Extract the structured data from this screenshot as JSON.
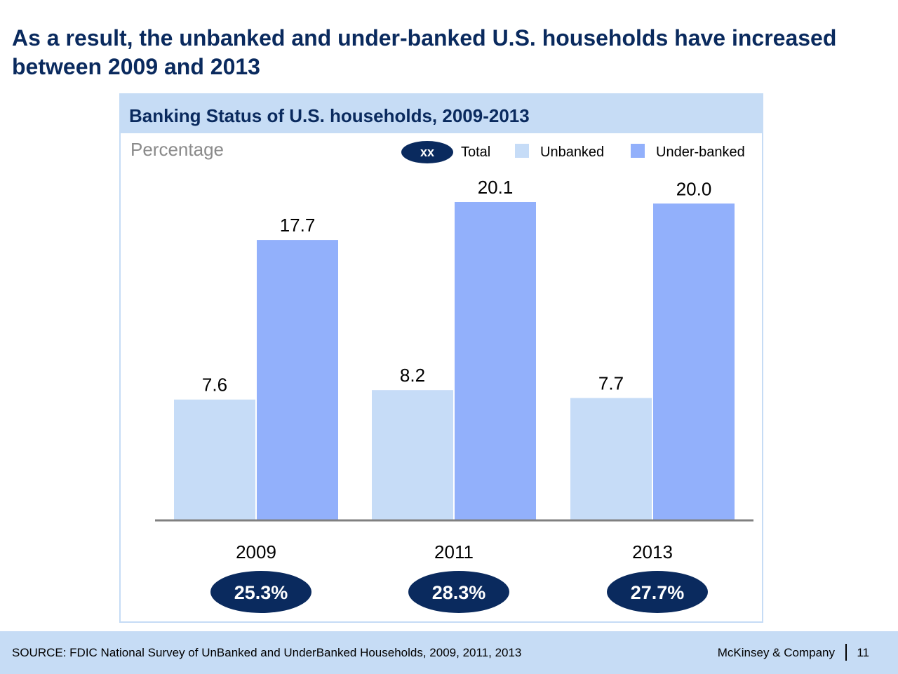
{
  "slide": {
    "title": "As a result, the unbanked and under-banked U.S. households have increased between 2009 and 2013"
  },
  "chart_data": {
    "type": "bar",
    "title": "Banking Status of U.S. households, 2009-2013",
    "ylabel": "Percentage",
    "categories": [
      "2009",
      "2011",
      "2013"
    ],
    "series": [
      {
        "name": "Unbanked",
        "values": [
          7.6,
          8.2,
          7.7
        ],
        "labels": [
          "7.6",
          "8.2",
          "7.7"
        ],
        "color": "#c6dcf7"
      },
      {
        "name": "Under-banked",
        "values": [
          17.7,
          20.1,
          20.0
        ],
        "labels": [
          "17.7",
          "20.1",
          "20.0"
        ],
        "color": "#92b0fb"
      }
    ],
    "totals": [
      "25.3%",
      "28.3%",
      "27.7%"
    ],
    "ylim": [
      0,
      20.1
    ],
    "grid": false,
    "legend": {
      "position": "top-right",
      "total_marker": "xx",
      "total_label": "Total",
      "total_color": "#0a2a5e"
    },
    "axis_color": "#808080"
  },
  "footer": {
    "source": "SOURCE: FDIC National Survey of UnBanked and UnderBanked Households, 2009, 2011, 2013",
    "company": "McKinsey & Company",
    "page_number": "11"
  },
  "colors": {
    "title": "#0a2a5e",
    "panel": "#c6dcf5"
  }
}
